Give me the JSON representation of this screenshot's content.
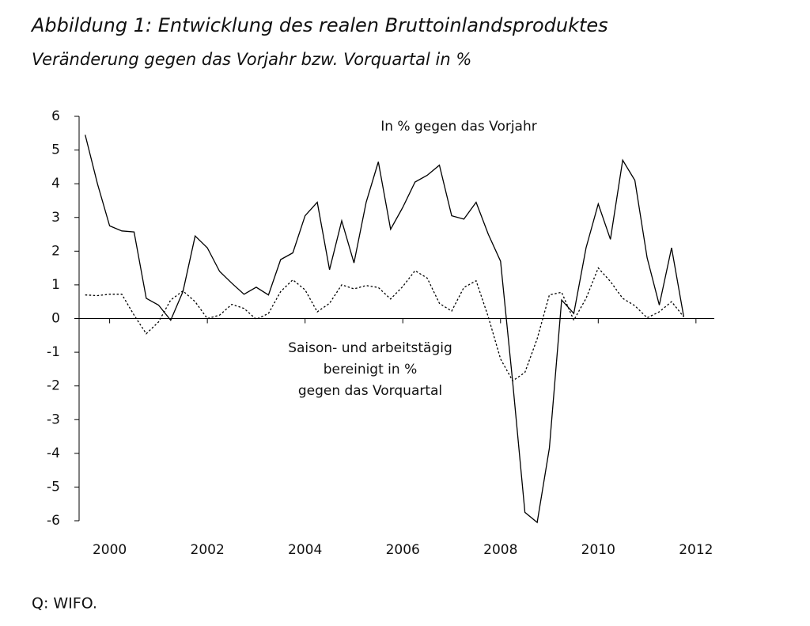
{
  "chart_data": {
    "type": "line",
    "title": "Abbildung 1: Entwicklung des  realen Bruttoinlandsproduktes",
    "subtitle": "Veränderung gegen das Vorjahr bzw. Vorquartal in %",
    "source": "Q: WIFO.",
    "x": [
      1999.5,
      1999.75,
      2000,
      2000.25,
      2000.5,
      2000.75,
      2001,
      2001.25,
      2001.5,
      2001.75,
      2002,
      2002.25,
      2002.5,
      2002.75,
      2003,
      2003.25,
      2003.5,
      2003.75,
      2004,
      2004.25,
      2004.5,
      2004.75,
      2005,
      2005.25,
      2005.5,
      2005.75,
      2006,
      2006.25,
      2006.5,
      2006.75,
      2007,
      2007.25,
      2007.5,
      2007.75,
      2008,
      2008.25,
      2008.5,
      2008.75,
      2009,
      2009.25,
      2009.5,
      2009.75,
      2010,
      2010.25,
      2010.5,
      2010.75,
      2011,
      2011.25,
      2011.5,
      2011.75
    ],
    "series": [
      {
        "name": [
          "In % gegen das Vorjahr"
        ],
        "color": "#000000",
        "dash": false,
        "values": [
          5.45,
          4.0,
          2.75,
          2.6,
          2.57,
          0.6,
          0.4,
          -0.05,
          0.8,
          2.45,
          2.1,
          1.4,
          1.05,
          0.72,
          0.93,
          0.7,
          1.75,
          1.95,
          3.05,
          3.45,
          1.45,
          2.9,
          1.65,
          3.45,
          4.65,
          2.65,
          3.3,
          4.05,
          4.25,
          4.55,
          3.05,
          2.95,
          3.45,
          2.5,
          1.7,
          -1.9,
          -5.75,
          -6.05,
          -3.85,
          0.55,
          0.15,
          2.1,
          3.4,
          2.35,
          4.7,
          4.1,
          1.8,
          0.4,
          2.1,
          0.05
        ]
      },
      {
        "name": [
          "Saison- und arbeitstägig",
          "bereinigt in %",
          "gegen das Vorquartal"
        ],
        "color": "#000000",
        "dash": true,
        "values": [
          0.7,
          0.68,
          0.72,
          0.72,
          0.1,
          -0.45,
          -0.1,
          0.55,
          0.82,
          0.5,
          0.0,
          0.1,
          0.42,
          0.3,
          -0.02,
          0.15,
          0.8,
          1.15,
          0.85,
          0.2,
          0.45,
          1.0,
          0.88,
          0.98,
          0.92,
          0.58,
          0.95,
          1.42,
          1.2,
          0.45,
          0.22,
          0.92,
          1.12,
          0.05,
          -1.2,
          -1.85,
          -1.6,
          -0.6,
          0.7,
          0.78,
          -0.05,
          0.6,
          1.5,
          1.1,
          0.6,
          0.38,
          0.02,
          0.2,
          0.5,
          0.05
        ]
      }
    ],
    "xlim": [
      1999.375,
      2012.375
    ],
    "xticks": [
      2000,
      2002,
      2004,
      2006,
      2008,
      2010,
      2012
    ],
    "ylim": [
      -6,
      6
    ],
    "yticks": [
      -6,
      -5,
      -4,
      -3,
      -2,
      -1,
      0,
      1,
      2,
      3,
      4,
      5,
      6
    ]
  }
}
